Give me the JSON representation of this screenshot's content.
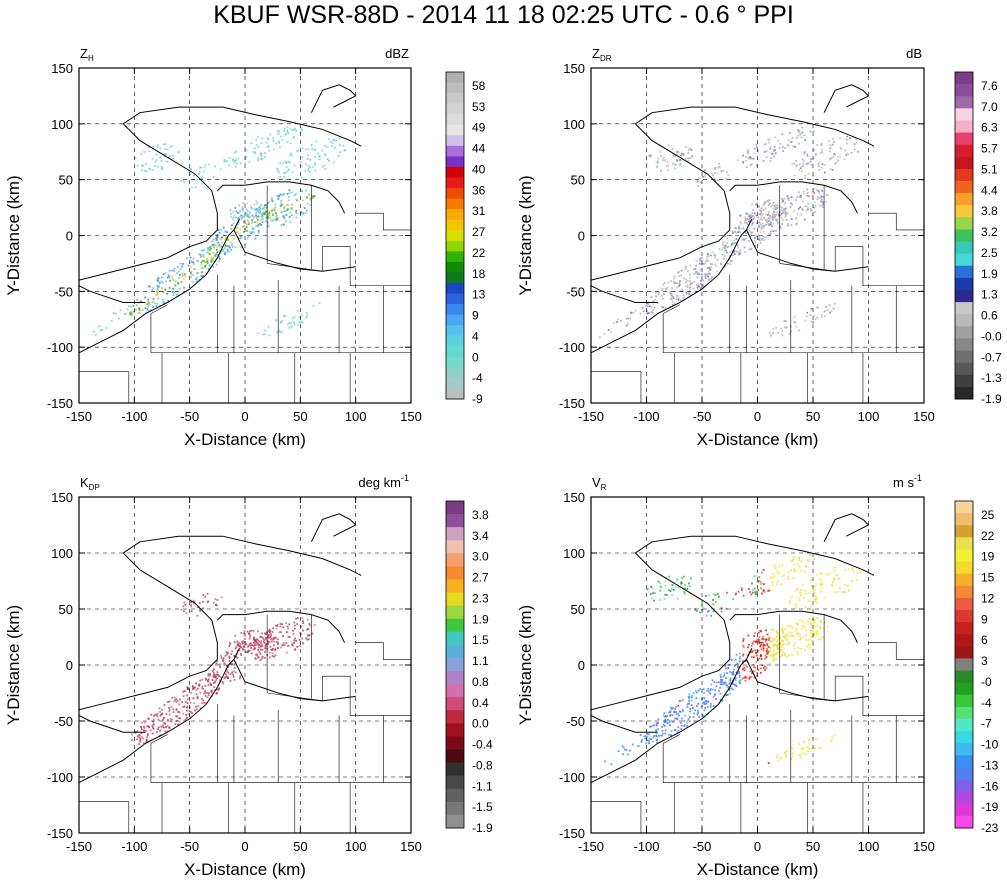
{
  "figure": {
    "title": "KBUF WSR-88D - 2014 11 18 02:25 UTC - 0.6 ° PPI"
  },
  "chart_data": [
    {
      "type": "heatmap",
      "field": "Z",
      "field_sub": "H",
      "units": "dBZ",
      "units_sup": "",
      "xlabel": "X-Distance (km)",
      "ylabel": "Y-Distance (km)",
      "xlim": [
        -150,
        150
      ],
      "ylim": [
        -150,
        150
      ],
      "xticks": [
        "-150",
        "-100",
        "-50",
        "0",
        "50",
        "100",
        "150"
      ],
      "yticks": [
        "150",
        "100",
        "50",
        "0",
        "-50",
        "-100",
        "-150"
      ],
      "grid": true,
      "colorbar_labels": [
        "58",
        "53",
        "49",
        "44",
        "40",
        "36",
        "31",
        "27",
        "22",
        "18",
        "13",
        "9",
        "4",
        "0",
        "-4",
        "-9"
      ],
      "colorbar_colors": [
        "#b0b0b0",
        "#bdbdbd",
        "#c9c9c9",
        "#d3d3d3",
        "#dcdcdc",
        "#e6e6e6",
        "#d2c0ea",
        "#a870d8",
        "#7a2fc8",
        "#d40000",
        "#e81a1a",
        "#ee4a00",
        "#f57b00",
        "#f9a800",
        "#f2c500",
        "#d8de00",
        "#8ed600",
        "#2fb400",
        "#108a00",
        "#0d7a1c",
        "#1e46c8",
        "#2a62e0",
        "#3a86ee",
        "#4aa8f2",
        "#55c4ec",
        "#5ad3dd",
        "#65d8d0",
        "#78d8cc",
        "#8fd0cc",
        "#a3c9c9",
        "#b8c0c0"
      ],
      "palette": [
        "#5fd2e0",
        "#6ab8e6",
        "#3f84e0",
        "#2aa86a",
        "#9ccd44",
        "#d7c73a",
        "#c8c8c8",
        "#7fd4d8"
      ]
    },
    {
      "type": "heatmap",
      "field": "Z",
      "field_sub": "DR",
      "units": "dB",
      "units_sup": "",
      "xlabel": "X-Distance (km)",
      "ylabel": "Y-Distance (km)",
      "xlim": [
        -150,
        150
      ],
      "ylim": [
        -150,
        150
      ],
      "xticks": [
        "-150",
        "-100",
        "-50",
        "0",
        "50",
        "100",
        "150"
      ],
      "yticks": [
        "150",
        "100",
        "50",
        "0",
        "-50",
        "-100",
        "-150"
      ],
      "grid": true,
      "colorbar_labels": [
        "7.6",
        "7.0",
        "6.3",
        "5.7",
        "5.1",
        "4.4",
        "3.8",
        "3.2",
        "2.5",
        "1.9",
        "1.3",
        "0.6",
        "-0.0",
        "-0.7",
        "-1.3",
        "-1.9"
      ],
      "colorbar_colors": [
        "#7a3e8a",
        "#8a4f98",
        "#a06aa8",
        "#f6d2e2",
        "#f4b0c6",
        "#e84070",
        "#d81e2e",
        "#c8141e",
        "#e23a1e",
        "#ef6420",
        "#f7a028",
        "#f7c83a",
        "#9cd44a",
        "#3cc060",
        "#38c8b8",
        "#46d8d8",
        "#2a70d8",
        "#1a3aa8",
        "#2a2a90",
        "#c8c8c8",
        "#b8b8b8",
        "#a0a0a0",
        "#888888",
        "#707070",
        "#585858",
        "#404040",
        "#282828"
      ],
      "palette": [
        "#a9a9d6",
        "#8f94c8",
        "#bdbde0",
        "#c7a0c4",
        "#6e7fbf",
        "#9fd1a0",
        "#e0c27a",
        "#b0b0b0"
      ]
    },
    {
      "type": "heatmap",
      "field": "K",
      "field_sub": "DP",
      "units": "deg km",
      "units_sup": "-1",
      "xlabel": "X-Distance (km)",
      "ylabel": "Y-Distance (km)",
      "xlim": [
        -150,
        150
      ],
      "ylim": [
        -150,
        150
      ],
      "xticks": [
        "-150",
        "-100",
        "-50",
        "0",
        "50",
        "100",
        "150"
      ],
      "yticks": [
        "150",
        "100",
        "50",
        "0",
        "-50",
        "-100",
        "-150"
      ],
      "grid": true,
      "colorbar_labels": [
        "3.8",
        "3.4",
        "3.0",
        "2.7",
        "2.3",
        "1.9",
        "1.5",
        "1.1",
        "0.8",
        "0.4",
        "0.0",
        "-0.4",
        "-0.8",
        "-1.1",
        "-1.5",
        "-1.9"
      ],
      "colorbar_colors": [
        "#7a3a86",
        "#8e5098",
        "#d0a0c0",
        "#f0c0b0",
        "#f4a070",
        "#f78a30",
        "#f5b020",
        "#e8d820",
        "#9ad840",
        "#40c840",
        "#40c8c0",
        "#5ab0d8",
        "#8aa0d8",
        "#b080c8",
        "#d070b0",
        "#d04a78",
        "#c02840",
        "#a01020",
        "#7a0a18",
        "#4a0a10",
        "#303030",
        "#484848",
        "#606060",
        "#787878",
        "#909090"
      ],
      "palette": [
        "#c24a6c",
        "#b8506e",
        "#d46a86",
        "#a83a5a"
      ]
    },
    {
      "type": "heatmap",
      "field": "V",
      "field_sub": "R",
      "units": "m s",
      "units_sup": "-1",
      "xlabel": "X-Distance (km)",
      "ylabel": "Y-Distance (km)",
      "xlim": [
        -150,
        150
      ],
      "ylim": [
        -150,
        150
      ],
      "xticks": [
        "-150",
        "-100",
        "-50",
        "0",
        "50",
        "100",
        "150"
      ],
      "yticks": [
        "150",
        "100",
        "50",
        "0",
        "-50",
        "-100",
        "-150"
      ],
      "grid": true,
      "colorbar_labels": [
        "25",
        "22",
        "19",
        "15",
        "12",
        "9",
        "6",
        "3",
        "-0",
        "-4",
        "-7",
        "-10",
        "-13",
        "-16",
        "-19",
        "-23"
      ],
      "colorbar_colors": [
        "#f7d49a",
        "#f0bd70",
        "#d4a030",
        "#e8e050",
        "#f0f030",
        "#f5d830",
        "#f6b028",
        "#f48a38",
        "#ee5a40",
        "#d83a30",
        "#c82020",
        "#b01818",
        "#9a1818",
        "#808080",
        "#2a8a2a",
        "#20a020",
        "#38c838",
        "#58e078",
        "#50e8c8",
        "#38d8e0",
        "#40b8f0",
        "#3a90f0",
        "#5080f0",
        "#8060e8",
        "#b048e0",
        "#e038d8",
        "#f848e8"
      ],
      "palette": [
        "#3a90f0",
        "#5080f0",
        "#8060e8",
        "#40b8f0",
        "#e8e050",
        "#f0f030",
        "#f5d830",
        "#ee5a40",
        "#c82020",
        "#2a8a2a",
        "#38c838",
        "#50e8c8",
        "#d83a30"
      ]
    }
  ]
}
